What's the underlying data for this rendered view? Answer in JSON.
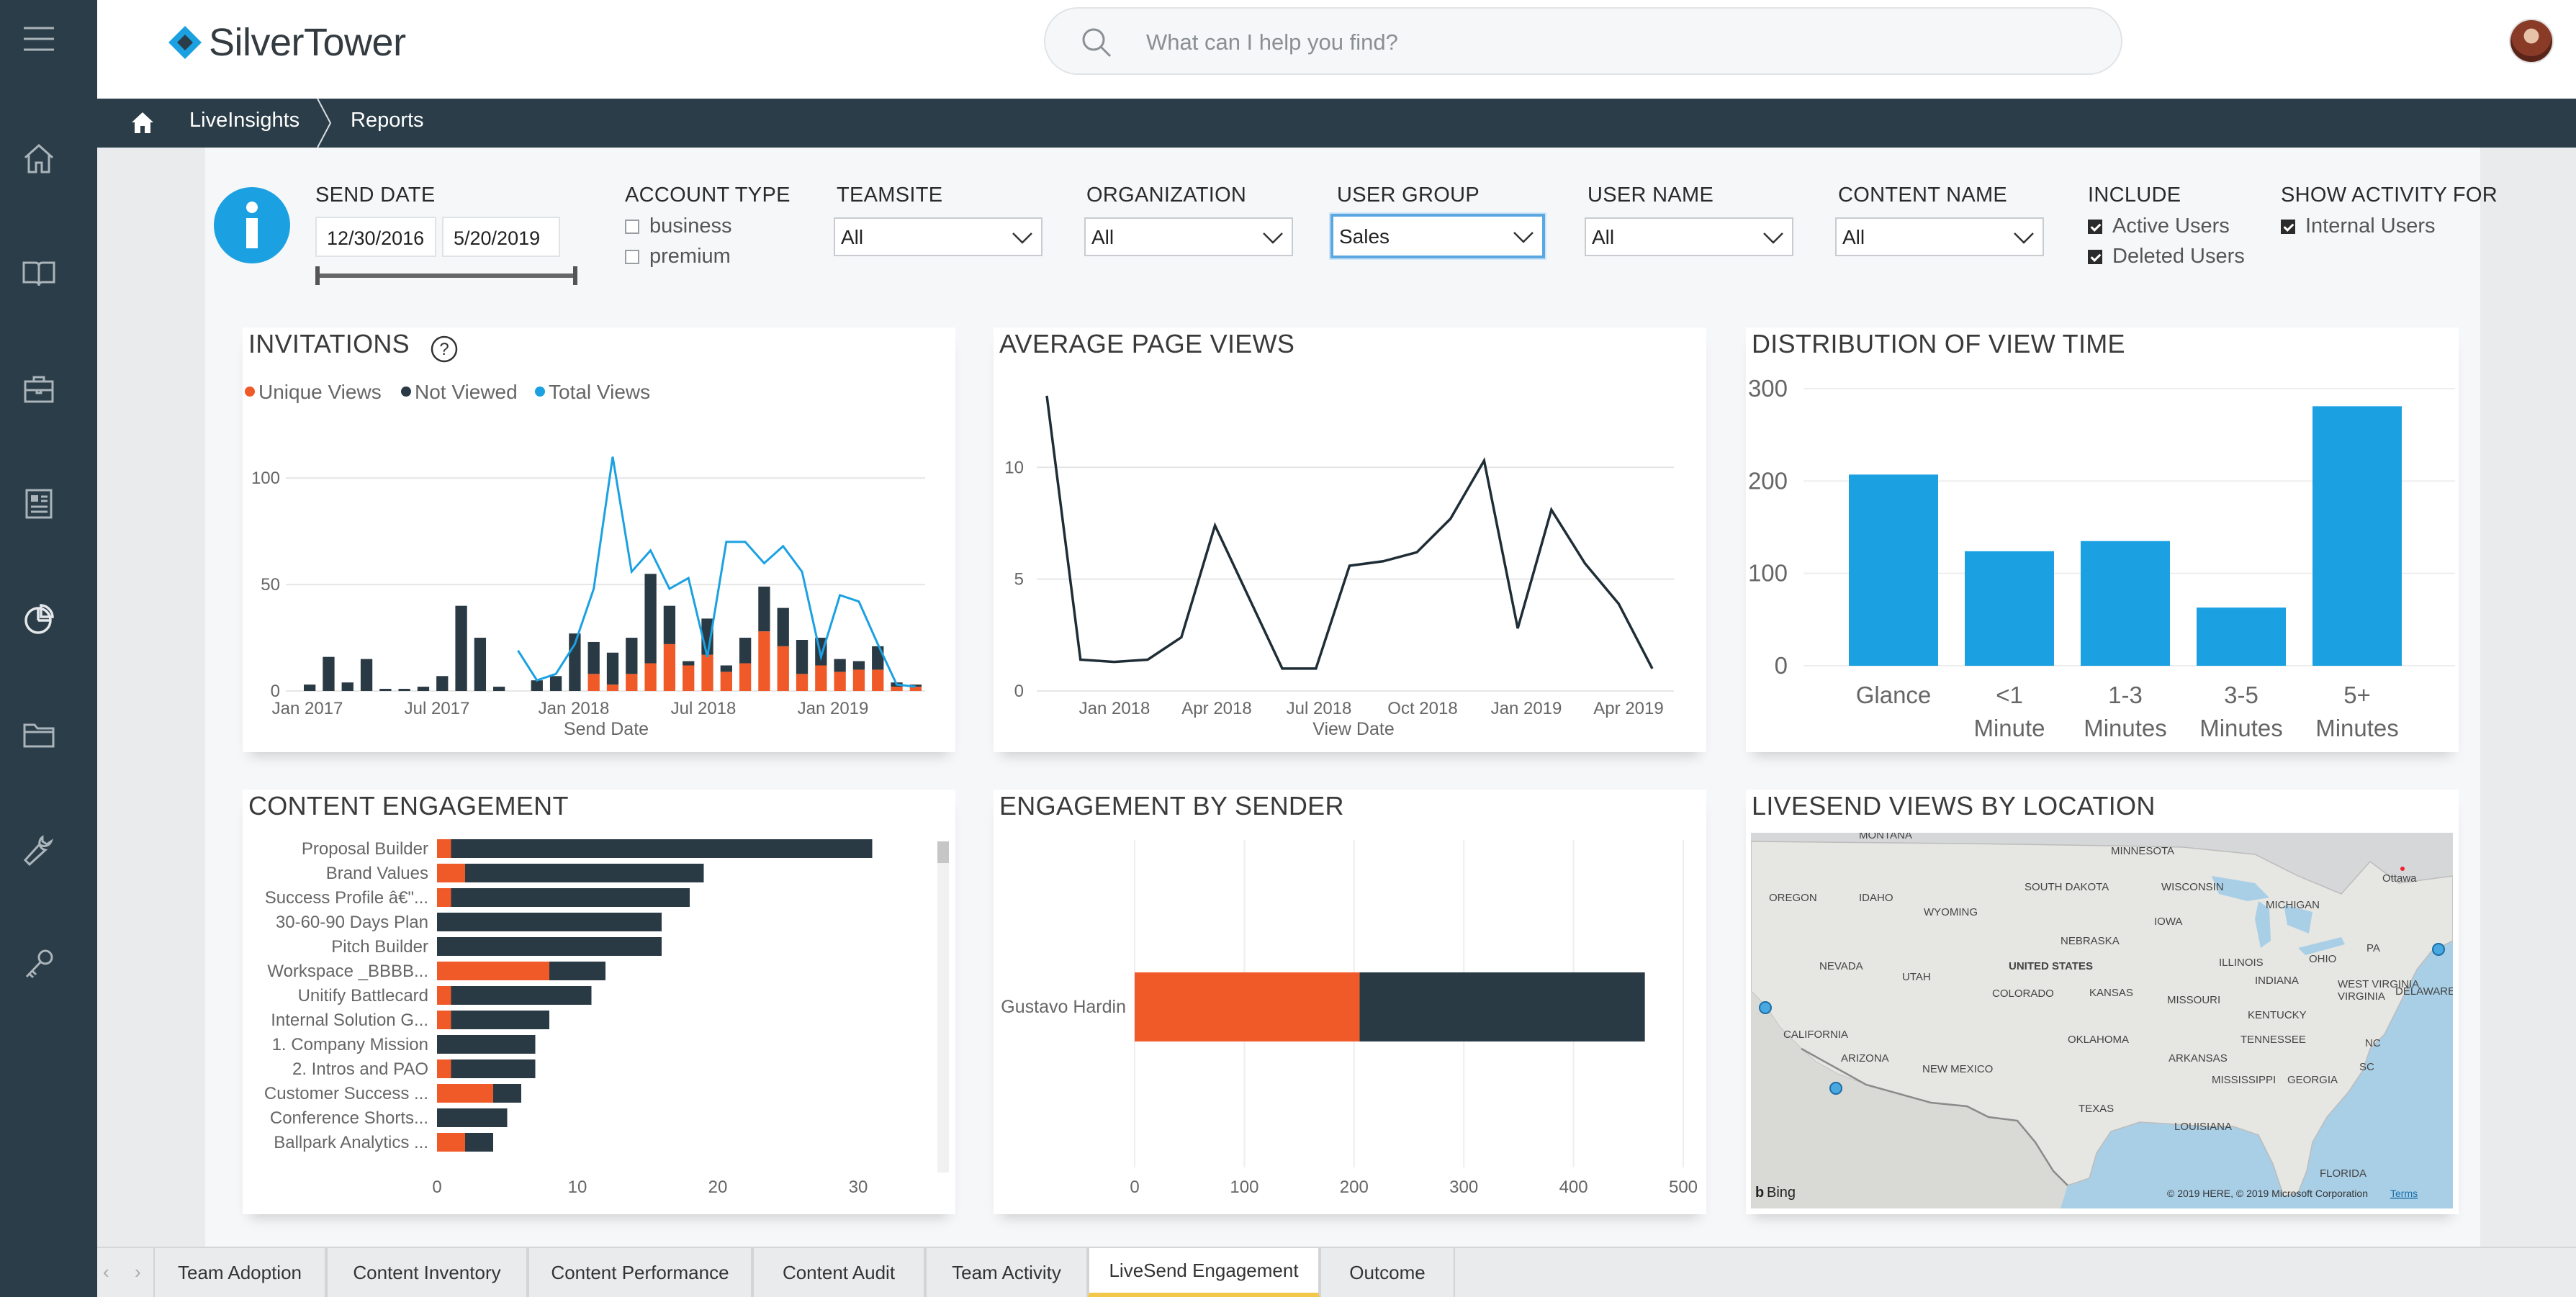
{
  "app": {
    "brand": "SilverTower",
    "search_placeholder": "What can I help you find?"
  },
  "rail": {
    "icons": [
      "menu-icon",
      "home-icon",
      "book-icon",
      "briefcase-icon",
      "newspaper-icon",
      "pie-chart-icon",
      "folder-icon",
      "wrench-icon",
      "key-icon"
    ]
  },
  "breadcrumb": {
    "items": [
      "LiveInsights",
      "Reports"
    ]
  },
  "filters": {
    "send_date": {
      "label": "SEND DATE",
      "start": "12/30/2016",
      "end": "5/20/2019"
    },
    "account_type": {
      "label": "ACCOUNT TYPE",
      "options": [
        "business",
        "premium"
      ]
    },
    "teamsite": {
      "label": "TEAMSITE",
      "value": "All"
    },
    "organization": {
      "label": "ORGANIZATION",
      "value": "All"
    },
    "user_group": {
      "label": "USER GROUP",
      "value": "Sales"
    },
    "user_name": {
      "label": "USER NAME",
      "value": "All"
    },
    "content_name": {
      "label": "CONTENT NAME",
      "value": "All"
    },
    "include": {
      "label": "INCLUDE",
      "options": [
        "Active Users",
        "Deleted Users"
      ]
    },
    "show_activity": {
      "label": "SHOW ACTIVITY FOR",
      "options": [
        "Internal Users"
      ]
    }
  },
  "colors": {
    "orange": "#f05a28",
    "dark": "#2a3a44",
    "blue": "#1ba1e2",
    "yellow_tab": "#f2c84b"
  },
  "panels": {
    "invitations": "INVITATIONS",
    "avg_page_views": "AVERAGE PAGE VIEWS",
    "view_time": "DISTRIBUTION OF VIEW TIME",
    "content_engagement": "CONTENT ENGAGEMENT",
    "engagement_by_sender": "ENGAGEMENT BY SENDER",
    "views_by_location": "LIVESEND VIEWS BY LOCATION"
  },
  "chart_data": [
    {
      "type": "bar",
      "title": "INVITATIONS",
      "xlabel": "Send Date",
      "x_ticks": [
        "Jan 2017",
        "Jul 2017",
        "Jan 2018",
        "Jul 2018",
        "Jan 2019"
      ],
      "y_ticks": [
        0,
        50,
        100
      ],
      "legend": [
        "Unique Views",
        "Not Viewed",
        "Total Views"
      ],
      "legend_position": "top-left",
      "series": [
        {
          "name": "Unique Views",
          "kind": "stacked-bar",
          "values": [
            0,
            0,
            0,
            0,
            0,
            0,
            0,
            0,
            0,
            0,
            0,
            0,
            0,
            0,
            0,
            8,
            3,
            8,
            13,
            22,
            12,
            17,
            9,
            13,
            28,
            21,
            8,
            12,
            9,
            10,
            10,
            2,
            2
          ]
        },
        {
          "name": "Not Viewed",
          "kind": "stacked-bar",
          "values": [
            3,
            16,
            4,
            15,
            1,
            1,
            2,
            7,
            40,
            25,
            2,
            0,
            5,
            7,
            27,
            15,
            15,
            17,
            42,
            18,
            2,
            17,
            3,
            12,
            21,
            18,
            16,
            13,
            6,
            4,
            11,
            2,
            1
          ]
        },
        {
          "name": "Total Views",
          "kind": "line",
          "values": [
            null,
            null,
            null,
            null,
            null,
            null,
            null,
            null,
            null,
            null,
            null,
            19,
            5,
            8,
            22,
            48,
            110,
            56,
            66,
            48,
            53,
            16,
            70,
            70,
            60,
            68,
            56,
            16,
            45,
            42,
            22,
            3,
            2
          ]
        }
      ],
      "ylim": [
        0,
        120
      ]
    },
    {
      "type": "line",
      "title": "AVERAGE PAGE VIEWS",
      "xlabel": "View Date",
      "x_ticks": [
        "Jan 2018",
        "Apr 2018",
        "Jul 2018",
        "Oct 2018",
        "Jan 2019",
        "Apr 2019"
      ],
      "y_ticks": [
        0,
        5,
        10
      ],
      "series": [
        {
          "values": [
            13.2,
            1.4,
            1.3,
            1.4,
            2.4,
            7.4,
            4.2,
            1.0,
            1.0,
            5.6,
            5.8,
            6.2,
            7.7,
            10.3,
            2.8,
            8.1,
            5.7,
            3.9,
            1.0
          ]
        }
      ],
      "ylim": [
        0,
        14
      ]
    },
    {
      "type": "bar",
      "title": "DISTRIBUTION OF VIEW TIME",
      "categories": [
        "Glance",
        "<1 Minute",
        "1-3 Minutes",
        "3-5 Minutes",
        "5+ Minutes"
      ],
      "values": [
        207,
        124,
        135,
        63,
        281
      ],
      "y_ticks": [
        0,
        100,
        200,
        300
      ],
      "ylim": [
        0,
        310
      ]
    },
    {
      "type": "bar",
      "orientation": "horizontal",
      "title": "CONTENT ENGAGEMENT",
      "categories": [
        "Proposal Builder",
        "Brand Values",
        "Success Profile â€\"...",
        "30-60-90 Days Plan",
        "Pitch Builder",
        "Workspace _BBBB...",
        "Unitify Battlecard",
        "Internal Solution G...",
        "1. Company Mission",
        "2. Intros and PAO",
        "Customer Success ...",
        "Conference Shorts...",
        "Ballpark Analytics ..."
      ],
      "series": [
        {
          "name": "orange",
          "values": [
            1,
            2,
            1,
            0,
            0,
            8,
            1,
            1,
            0,
            1,
            4,
            0,
            2
          ]
        },
        {
          "name": "dark",
          "values": [
            30,
            17,
            17,
            16,
            16,
            4,
            10,
            7,
            7,
            6,
            2,
            5,
            2
          ]
        }
      ],
      "x_ticks": [
        0,
        10,
        20,
        30
      ],
      "xlim": [
        0,
        36
      ]
    },
    {
      "type": "bar",
      "orientation": "horizontal",
      "title": "ENGAGEMENT BY SENDER",
      "categories": [
        "Gustavo Hardin"
      ],
      "series": [
        {
          "name": "orange",
          "values": [
            205
          ]
        },
        {
          "name": "dark",
          "values": [
            260
          ]
        }
      ],
      "x_ticks": [
        0,
        100,
        200,
        300,
        400,
        500
      ],
      "xlim": [
        0,
        500
      ]
    }
  ],
  "map": {
    "title": "LIVESEND VIEWS BY LOCATION",
    "labels": [
      "MONTANA",
      "MINNESOTA",
      "Ottawa",
      "SOUTH DAKOTA",
      "WISCONSIN",
      "OREGON",
      "IDAHO",
      "WYOMING",
      "MICHIGAN",
      "IOWA",
      "NEBRASKA",
      "PA",
      "NEVADA",
      "UTAH",
      "UNITED STATES",
      "ILLINOIS",
      "OHIO",
      "COLORADO",
      "KANSAS",
      "MISSOURI",
      "WEST VIRGINIA",
      "VIRGINIA",
      "DELAWARE",
      "INDIANA",
      "CALIFORNIA",
      "KENTUCKY",
      "TENNESSEE",
      "NC",
      "ARIZONA",
      "NEW MEXICO",
      "OKLAHOMA",
      "ARKANSAS",
      "SC",
      "MISSISSIPPI",
      "GEORGIA",
      "TEXAS",
      "LOUISIANA",
      "FLORIDA"
    ],
    "bing": "Bing",
    "copyright": "© 2019 HERE, © 2019 Microsoft Corporation",
    "terms": "Terms"
  },
  "tabs": [
    "Team Adoption",
    "Content Inventory",
    "Content Performance",
    "Content Audit",
    "Team Activity",
    "LiveSend Engagement",
    "Outcome"
  ],
  "active_tab": "LiveSend Engagement",
  "invitations_help": "?"
}
